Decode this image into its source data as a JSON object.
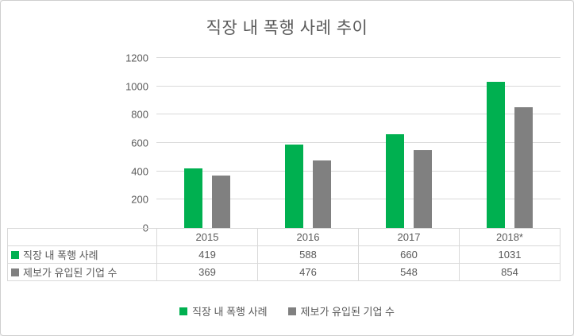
{
  "chart_data": {
    "type": "bar",
    "title": "직장 내 폭행 사례 추이",
    "categories": [
      "2015",
      "2016",
      "2017",
      "2018*"
    ],
    "series": [
      {
        "name": "직장 내 폭행 사례",
        "color": "#00B050",
        "values": [
          419,
          588,
          660,
          1031
        ]
      },
      {
        "name": "제보가 유입된 기업 수",
        "color": "#808080",
        "values": [
          369,
          476,
          548,
          854
        ]
      }
    ],
    "ylim": [
      0,
      1200
    ],
    "ytick_step": 200,
    "grid": true,
    "legend_position": "bottom",
    "data_table_shown": true
  }
}
